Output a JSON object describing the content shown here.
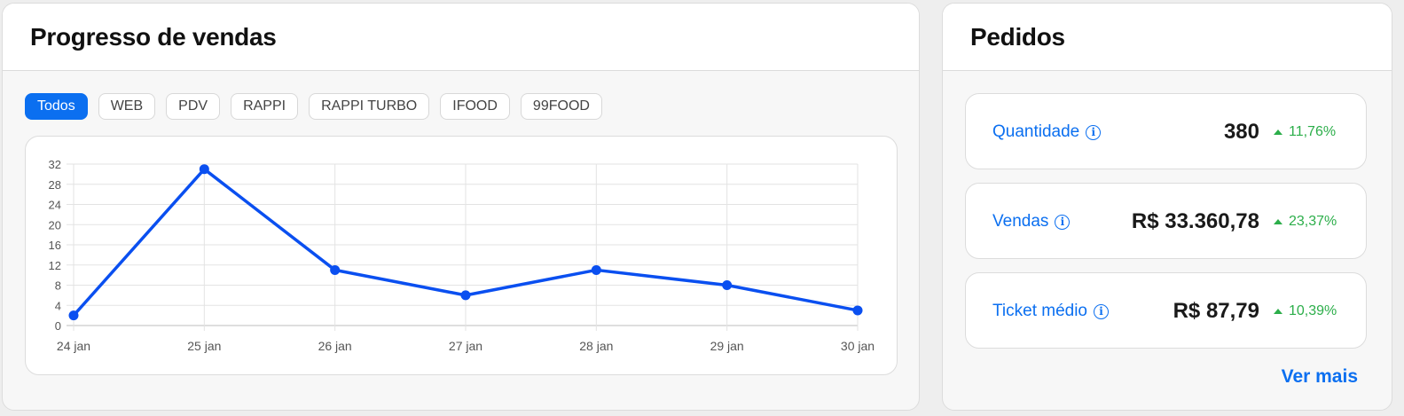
{
  "sales": {
    "title": "Progresso de vendas",
    "filters": [
      "Todos",
      "WEB",
      "PDV",
      "RAPPI",
      "RAPPI TURBO",
      "IFOOD",
      "99FOOD"
    ],
    "active_filter": "Todos"
  },
  "chart_data": {
    "type": "line",
    "categories": [
      "24 jan",
      "25 jan",
      "26 jan",
      "27 jan",
      "28 jan",
      "29 jan",
      "30 jan"
    ],
    "series": [
      {
        "values": [
          2,
          31,
          11,
          6,
          11,
          8,
          3
        ]
      }
    ],
    "yticks": [
      0,
      4,
      8,
      12,
      16,
      20,
      24,
      28,
      32
    ],
    "ylim": [
      0,
      32
    ],
    "grid": true,
    "line_color": "#0a4ff0"
  },
  "orders": {
    "title": "Pedidos",
    "metrics": [
      {
        "label": "Quantidade",
        "value": "380",
        "delta": "11,76%"
      },
      {
        "label": "Vendas",
        "value": "R$ 33.360,78",
        "delta": "23,37%"
      },
      {
        "label": "Ticket médio",
        "value": "R$ 87,79",
        "delta": "10,39%"
      }
    ],
    "see_more": "Ver mais"
  },
  "colors": {
    "accent": "#0b6ff0",
    "positive": "#2cae4a"
  }
}
